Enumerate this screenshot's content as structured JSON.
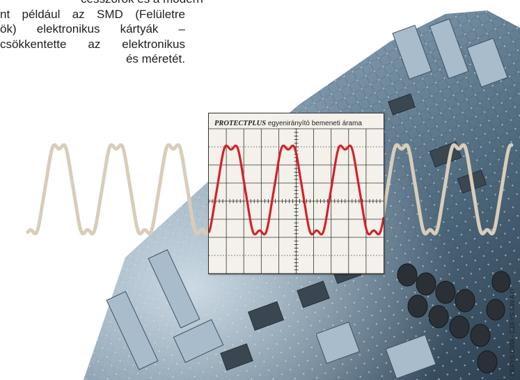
{
  "intro_text": {
    "line1": "cesszorok és a modern",
    "line2": "nt például az SMD (Felületre",
    "line3": "ök) elektronikus kártyák –",
    "line4": "csökkentette az elektronikus",
    "line5": "és méretét."
  },
  "scope": {
    "title_brand": "PROTECTPLUS",
    "title_text": "egyenirányító bemeneti árama"
  },
  "reference_code": "DEFYS 038A - DEFYS 039 A IT",
  "colors": {
    "scope_wave": "#d42127",
    "faded_wave": "#d8cdb8",
    "board_blue": "#4f6f86"
  }
}
